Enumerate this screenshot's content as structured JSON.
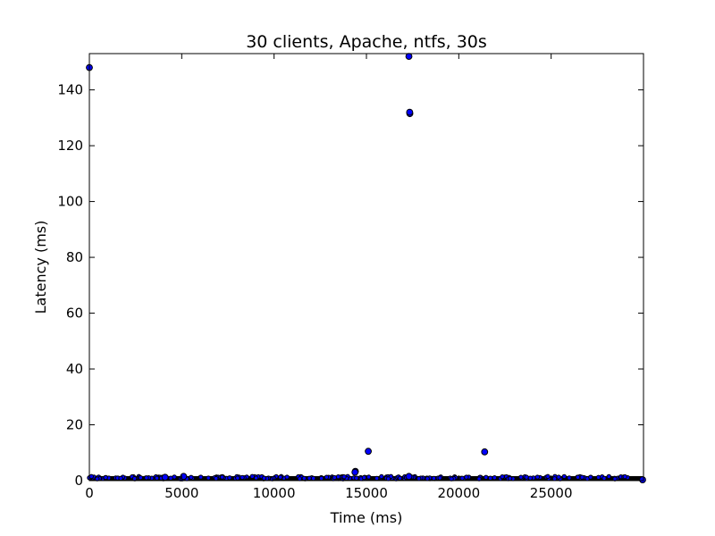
{
  "chart_data": {
    "type": "scatter",
    "title": "30 clients, Apache, ntfs, 30s",
    "xlabel": "Time (ms)",
    "ylabel": "Latency (ms)",
    "xlim": [
      0,
      30000
    ],
    "ylim": [
      0,
      153
    ],
    "xticks": [
      0,
      5000,
      10000,
      15000,
      20000,
      25000
    ],
    "yticks": [
      0,
      20,
      40,
      60,
      80,
      100,
      120,
      140
    ],
    "marker_color": "#0000ff",
    "marker_edge": "#000000",
    "series": [
      {
        "points": [
          [
            0,
            148
          ],
          [
            17300,
            152
          ],
          [
            17350,
            131.5
          ],
          [
            17340,
            132
          ],
          [
            15100,
            10.5
          ],
          [
            21400,
            10.3
          ],
          [
            14400,
            3.3
          ],
          [
            14380,
            3.0
          ],
          [
            17300,
            1.5
          ],
          [
            5100,
            1.5
          ],
          [
            4100,
            1.2
          ],
          [
            29950,
            0.3
          ]
        ]
      }
    ],
    "baseline_band": {
      "x_range": [
        0,
        29950
      ],
      "y_range": [
        0,
        1.3
      ]
    }
  }
}
